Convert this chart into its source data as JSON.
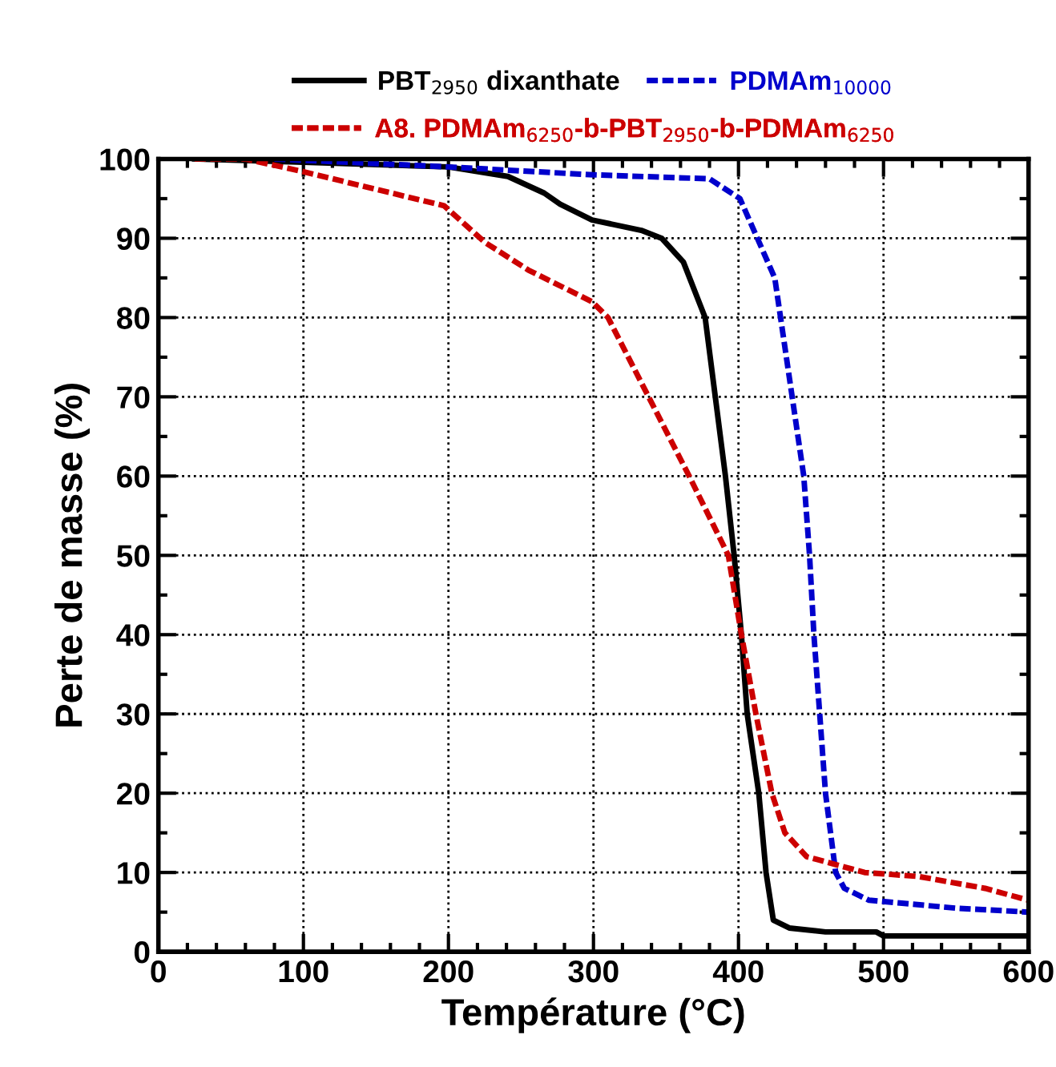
{
  "chart_data": {
    "type": "line",
    "xlabel": "Température (°C)",
    "ylabel": "Perte de masse (%)",
    "xlim": [
      0,
      600
    ],
    "xticks": [
      0,
      100,
      200,
      300,
      400,
      500,
      600
    ],
    "ylim": [
      0,
      100
    ],
    "yticks": [
      0,
      10,
      20,
      30,
      40,
      50,
      60,
      70,
      80,
      90,
      100
    ],
    "grid": true,
    "legend": "top",
    "marker": "none",
    "series": [
      {
        "name": "PBT$_{2950}$ dixanthate",
        "color": "#000000",
        "line_style": "solid",
        "x": [
          25,
          100,
          200,
          241,
          266,
          277,
          299,
          333,
          347,
          362,
          377,
          384,
          391,
          397,
          402,
          406,
          414,
          419,
          424,
          435,
          460,
          495,
          500,
          600
        ],
        "values": [
          100,
          99.6,
          99,
          97.8,
          95.7,
          94.3,
          92.3,
          91,
          90,
          87,
          80,
          70,
          60,
          50,
          40,
          30,
          20,
          10,
          4,
          3,
          2.5,
          2.5,
          2,
          2
        ]
      },
      {
        "name": "PDMAm$_{10000}$",
        "color": "#0000cc",
        "line_style": "dashed",
        "x": [
          80,
          200,
          300,
          380,
          401,
          413,
          425,
          437,
          445,
          449,
          452,
          456,
          460,
          467,
          473,
          490,
          550,
          600
        ],
        "values": [
          100,
          99,
          98,
          97.5,
          95,
          90,
          85,
          70,
          60,
          50,
          40,
          30,
          20,
          10,
          8,
          6.5,
          5.5,
          5
        ]
      },
      {
        "name": "A8. PDMAm$_{6250}$-b-PBT$_{2950}$-b-PDMAm$_{6250}$",
        "color": "#cc0000",
        "line_style": "dashed",
        "x": [
          25,
          60,
          100,
          145,
          197,
          225,
          255,
          299,
          310,
          338,
          366,
          393,
          402,
          412,
          423,
          432,
          447,
          487,
          524,
          570,
          600
        ],
        "values": [
          100,
          100,
          98.4,
          96.4,
          94.1,
          89.5,
          86,
          82,
          80,
          70,
          60,
          50,
          40,
          30,
          20,
          15,
          12,
          10,
          9.5,
          8,
          6.5
        ]
      }
    ]
  }
}
